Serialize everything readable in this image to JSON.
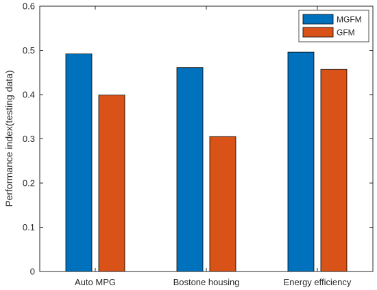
{
  "chart_data": {
    "type": "bar",
    "title": "",
    "xlabel": "",
    "ylabel": "Performance index(testing data)",
    "ylim": [
      0,
      0.6
    ],
    "yticks": [
      "0",
      "0.1",
      "0.2",
      "0.3",
      "0.4",
      "0.5",
      "0.6"
    ],
    "categories": [
      "Auto MPG",
      "Bostone housing",
      "Energy efficiency"
    ],
    "series": [
      {
        "name": "MGFM",
        "color": "#0072BD",
        "values": [
          0.492,
          0.461,
          0.496
        ]
      },
      {
        "name": "GFM",
        "color": "#D95319",
        "values": [
          0.399,
          0.305,
          0.457
        ]
      }
    ],
    "grid": false,
    "legend_position": "top-right"
  }
}
